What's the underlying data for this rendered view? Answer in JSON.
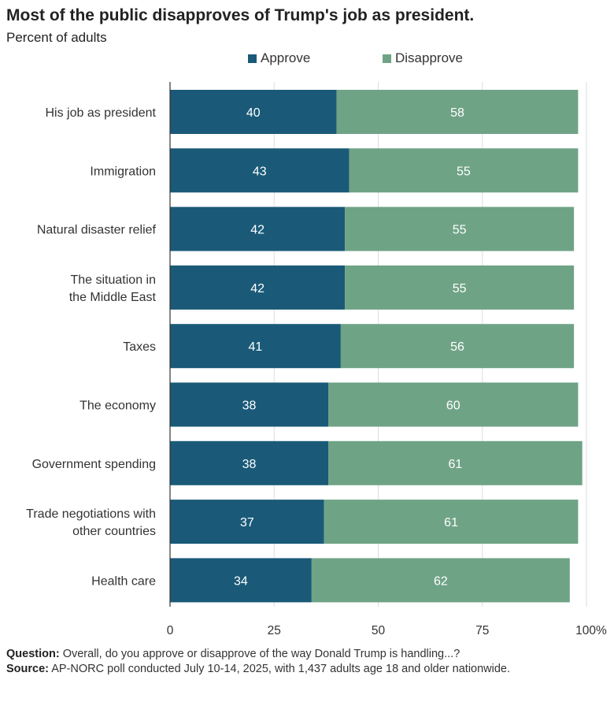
{
  "colors": {
    "approve": "#1a5a78",
    "disapprove": "#6fa386",
    "gridline": "#dddddd",
    "axis": "#333333"
  },
  "chart_data": {
    "type": "bar",
    "orientation": "horizontal",
    "stacked": true,
    "title": "Most of the public disapproves of Trump's job as president.",
    "subtitle": "Percent of adults",
    "categories": [
      [
        "His job as president"
      ],
      [
        "Immigration"
      ],
      [
        "Natural disaster relief"
      ],
      [
        "The situation in",
        "the Middle East"
      ],
      [
        "Taxes"
      ],
      [
        "The economy"
      ],
      [
        "Government spending"
      ],
      [
        "Trade negotiations with",
        "other countries"
      ],
      [
        "Health care"
      ]
    ],
    "series": [
      {
        "name": "Approve",
        "values": [
          40,
          43,
          42,
          42,
          41,
          38,
          38,
          37,
          34
        ]
      },
      {
        "name": "Disapprove",
        "values": [
          58,
          55,
          55,
          55,
          56,
          60,
          61,
          61,
          62
        ]
      }
    ],
    "xlim": [
      0,
      100
    ],
    "xticks": [
      "0",
      "25",
      "50",
      "75",
      "100%"
    ],
    "xtick_values": [
      0,
      25,
      50,
      75,
      100
    ],
    "legend": "top-center"
  },
  "footer": {
    "question_label": "Question:",
    "question_text": "Overall, do you approve or disapprove of the way Donald Trump is handling...?",
    "source_label": "Source:",
    "source_text": "AP-NORC poll conducted July 10-14, 2025, with 1,437 adults age 18 and older nationwide."
  }
}
